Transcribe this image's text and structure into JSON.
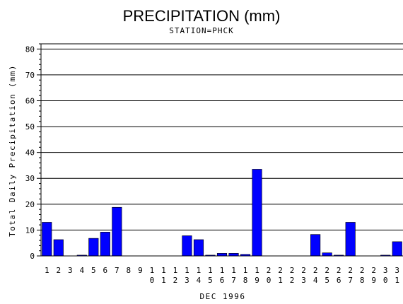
{
  "chart_data": {
    "type": "bar",
    "title": "PRECIPITATION (mm)",
    "subtitle": "STATION=PHCK",
    "xlabel": "DEC 1996",
    "ylabel": "Total Daily Precipitation (mm)",
    "ylim": [
      0,
      82
    ],
    "yticks": [
      0,
      10,
      20,
      30,
      40,
      50,
      60,
      70,
      80
    ],
    "grid": true,
    "bar_color": "#0000ff",
    "categories": [
      "1",
      "2",
      "3",
      "4",
      "5",
      "6",
      "7",
      "8",
      "9",
      "10",
      "11",
      "12",
      "13",
      "14",
      "15",
      "16",
      "17",
      "18",
      "19",
      "20",
      "21",
      "22",
      "23",
      "24",
      "25",
      "26",
      "27",
      "28",
      "29",
      "30",
      "31"
    ],
    "values": [
      13,
      6.3,
      0,
      0.3,
      6.8,
      9.2,
      18.8,
      0,
      0,
      0,
      0,
      0,
      7.8,
      6.3,
      0.3,
      1,
      1,
      0.6,
      33.5,
      0,
      0,
      0,
      0,
      8.3,
      1.2,
      0.3,
      13,
      0,
      0,
      0.3,
      5.5
    ]
  }
}
